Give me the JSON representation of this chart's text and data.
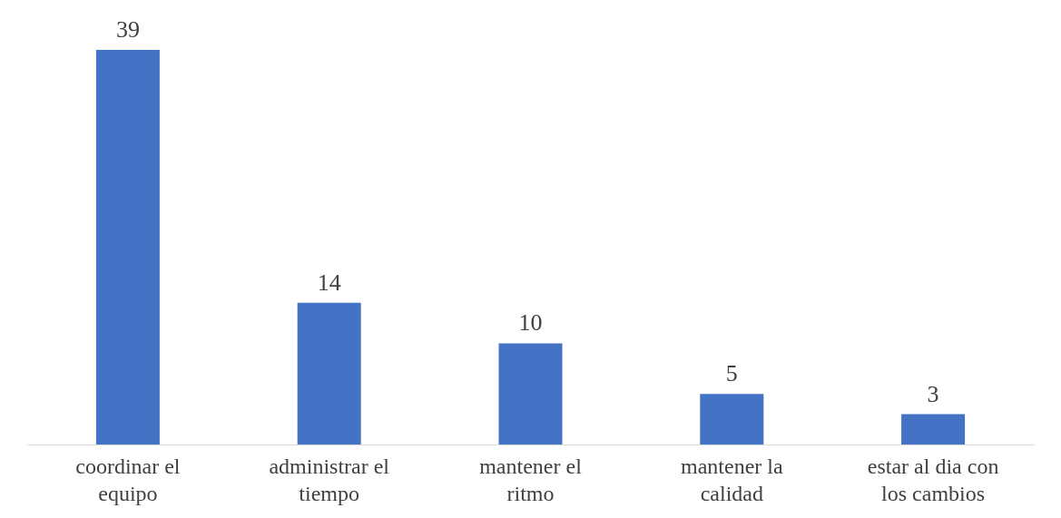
{
  "chart_data": {
    "type": "bar",
    "categories": [
      "coordinar el equipo",
      "administrar el tiempo",
      "mantener el ritmo",
      "mantener la calidad",
      "estar al dia con los cambios"
    ],
    "values": [
      39,
      14,
      10,
      5,
      3
    ],
    "color": "#4472c4",
    "data_labels": true
  }
}
